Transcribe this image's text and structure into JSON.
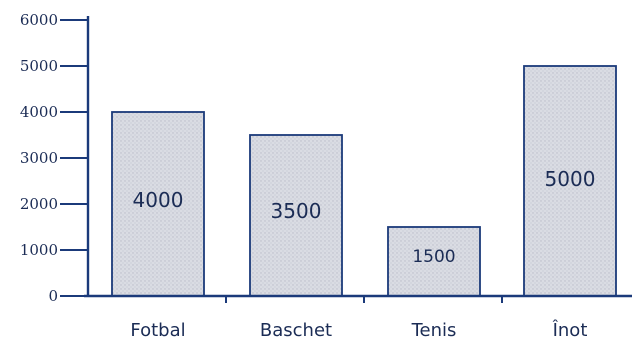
{
  "chart_data": {
    "type": "bar",
    "categories": [
      "Fotbal",
      "Baschet",
      "Tenis",
      "Înot"
    ],
    "values": [
      4000,
      3500,
      1500,
      5000
    ],
    "data_labels": [
      "4000",
      "3500",
      "1500",
      "5000"
    ],
    "yticks": [
      0,
      1000,
      2000,
      3000,
      4000,
      5000,
      6000
    ],
    "ytick_labels": [
      "0",
      "1000",
      "2000",
      "3000",
      "4000",
      "5000",
      "6000"
    ],
    "ylim": [
      0,
      6000
    ],
    "title": "",
    "xlabel": "",
    "ylabel": "",
    "grid": false,
    "legend": "none",
    "colors": {
      "bar_fill": "#d9dbe2",
      "bar_stroke": "#1b3a7a",
      "axis": "#1b3a7a",
      "text": "#1b2c55"
    }
  }
}
